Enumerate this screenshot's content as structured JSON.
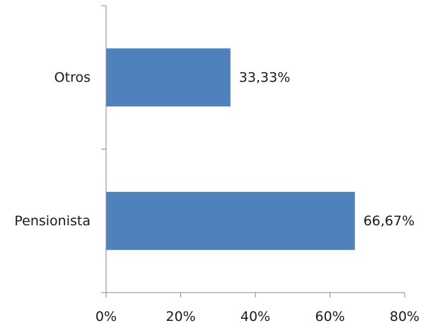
{
  "chart_data": {
    "type": "bar",
    "orientation": "horizontal",
    "title": "",
    "xlabel": "",
    "ylabel": "",
    "categories": [
      "Otros",
      "Pensionista"
    ],
    "values": [
      33.33,
      66.67
    ],
    "data_labels": [
      "33,33%",
      "66,67%"
    ],
    "xlim": [
      0,
      80
    ],
    "x_ticks": [
      0,
      20,
      40,
      60,
      80
    ],
    "x_tick_labels": [
      "0%",
      "20%",
      "40%",
      "60%",
      "80%"
    ],
    "grid": false,
    "legend": "none",
    "bar_color": "#4F81BD"
  }
}
